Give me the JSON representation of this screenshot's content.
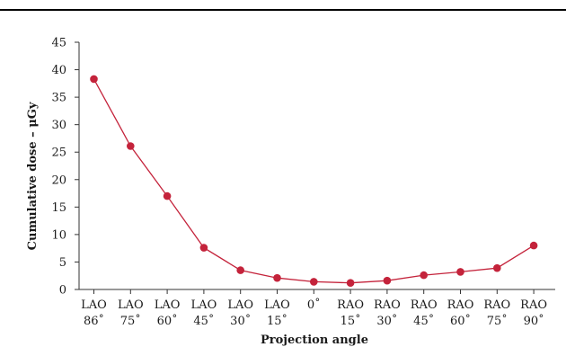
{
  "chart_data": {
    "type": "line",
    "title": "",
    "xlabel": "Projection angle",
    "ylabel": "Cumulative dose – μGy",
    "ylim": [
      0,
      45
    ],
    "yticks": [
      0,
      5,
      10,
      15,
      20,
      25,
      30,
      35,
      40,
      45
    ],
    "categories": [
      [
        "LAO",
        "86˚"
      ],
      [
        "LAO",
        "75˚"
      ],
      [
        "LAO",
        "60˚"
      ],
      [
        "LAO",
        "45˚"
      ],
      [
        "LAO",
        "30˚"
      ],
      [
        "LAO",
        "15˚"
      ],
      [
        "0˚",
        ""
      ],
      [
        "RAO",
        "15˚"
      ],
      [
        "RAO",
        "30˚"
      ],
      [
        "RAO",
        "45˚"
      ],
      [
        "RAO",
        "60˚"
      ],
      [
        "RAO",
        "75˚"
      ],
      [
        "RAO",
        "90˚"
      ]
    ],
    "series": [
      {
        "values": [
          38.3,
          26.1,
          17.0,
          7.6,
          3.5,
          2.1,
          1.4,
          1.2,
          1.6,
          2.6,
          3.2,
          3.9,
          8.0
        ]
      }
    ],
    "grid": false,
    "colors": {
      "series": "#c4233b",
      "axis": "#333333",
      "top_rule": "#000000"
    }
  }
}
